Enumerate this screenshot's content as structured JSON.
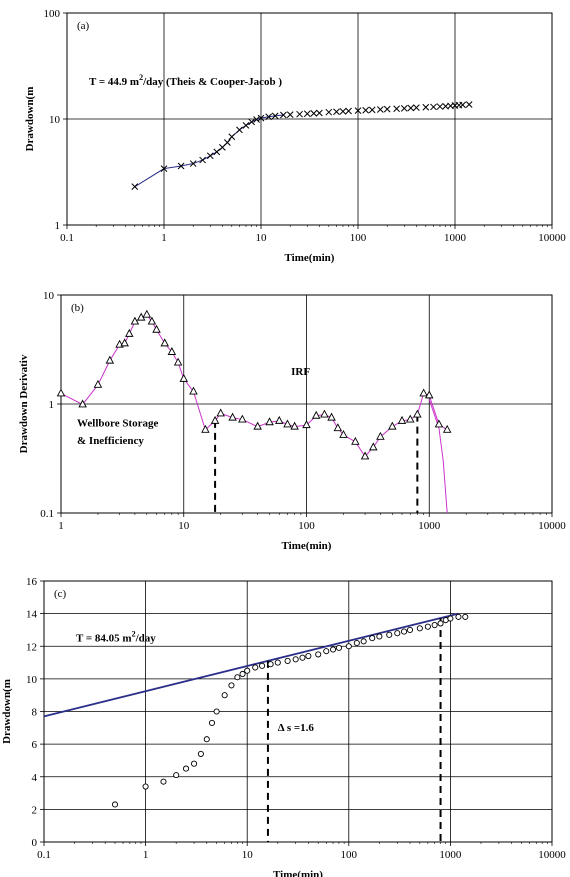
{
  "chart_data": [
    {
      "type": "scatter",
      "panel_label": "(a)",
      "xlabel": "Time(min)",
      "ylabel": "Drawdown(m",
      "xscale": "log",
      "yscale": "log",
      "xlim": [
        0.1,
        10000
      ],
      "ylim": [
        1,
        100
      ],
      "x_ticks": [
        "0.1",
        "1",
        "10",
        "100",
        "1000",
        "10000"
      ],
      "y_ticks": [
        "1",
        "10",
        "100"
      ],
      "grid": true,
      "annotation": {
        "prefix": "T = 44.9 m",
        "sup": "2",
        "suffix": "/day  (Theis & Cooper-Jacob )"
      },
      "series": [
        {
          "marker": "x",
          "color": "#000000",
          "x": [
            0.5,
            1,
            1.5,
            2,
            2.5,
            3,
            3.5,
            4,
            4.5,
            5,
            6,
            7,
            8,
            9,
            10,
            12,
            14,
            17,
            20,
            25,
            30,
            35,
            40,
            50,
            60,
            70,
            80,
            100,
            120,
            140,
            170,
            200,
            250,
            300,
            350,
            400,
            500,
            600,
            700,
            800,
            900,
            1000,
            1100,
            1200,
            1400
          ],
          "y": [
            2.3,
            3.4,
            3.6,
            3.8,
            4.1,
            4.5,
            4.9,
            5.4,
            6.0,
            6.8,
            7.9,
            8.7,
            9.4,
            9.9,
            10.2,
            10.5,
            10.7,
            10.9,
            11.0,
            11.1,
            11.2,
            11.3,
            11.4,
            11.6,
            11.7,
            11.8,
            11.9,
            12.0,
            12.1,
            12.2,
            12.3,
            12.4,
            12.5,
            12.6,
            12.7,
            12.8,
            12.9,
            13.0,
            13.1,
            13.2,
            13.3,
            13.4,
            13.5,
            13.6,
            13.7
          ]
        },
        {
          "marker": "none",
          "color": "#2b2f8a",
          "x": [
            0.5,
            1,
            1.5,
            2,
            2.5,
            3,
            3.5,
            4,
            4.5,
            5,
            6,
            7,
            8,
            9,
            10,
            12,
            14,
            17
          ],
          "y": [
            2.3,
            3.4,
            3.6,
            3.8,
            4.1,
            4.5,
            4.9,
            5.4,
            6.0,
            6.8,
            7.9,
            8.7,
            9.4,
            9.9,
            10.2,
            10.5,
            10.7,
            10.9
          ]
        }
      ]
    },
    {
      "type": "line",
      "panel_label": "(b)",
      "xlabel": "Time(min)",
      "ylabel": "Drawdown Derivativ",
      "xscale": "log",
      "yscale": "log",
      "xlim": [
        1,
        10000
      ],
      "ylim": [
        0.1,
        10
      ],
      "x_ticks": [
        "1",
        "10",
        "100",
        "1000",
        "10000"
      ],
      "y_ticks": [
        "0.1",
        "1",
        "10"
      ],
      "grid": true,
      "annotations": [
        "IRF",
        "Wellbore Storage",
        "& Inefficiency"
      ],
      "vlines": [
        18,
        800
      ],
      "series": [
        {
          "marker": "triangle",
          "color": "#000000",
          "line_color": "#cc33cc",
          "x": [
            1,
            1.5,
            2,
            2.5,
            3,
            3.3,
            3.6,
            4,
            4.5,
            5,
            5.5,
            6,
            7,
            8,
            9,
            10,
            12,
            15,
            18,
            20,
            25,
            30,
            40,
            50,
            60,
            70,
            80,
            100,
            120,
            140,
            160,
            180,
            200,
            250,
            300,
            350,
            400,
            500,
            600,
            700,
            800,
            900,
            1000,
            1200,
            1400
          ],
          "y": [
            1.25,
            0.99,
            1.5,
            2.5,
            3.5,
            3.6,
            4.4,
            5.7,
            6.2,
            6.6,
            5.7,
            4.8,
            3.6,
            3.0,
            2.4,
            1.7,
            1.3,
            0.58,
            0.7,
            0.82,
            0.75,
            0.72,
            0.62,
            0.68,
            0.7,
            0.65,
            0.62,
            0.64,
            0.78,
            0.8,
            0.75,
            0.6,
            0.52,
            0.45,
            0.33,
            0.4,
            0.5,
            0.62,
            0.7,
            0.72,
            0.8,
            1.25,
            1.2,
            0.65,
            0.58
          ]
        }
      ],
      "tail": {
        "x": [
          1000,
          1200,
          1300,
          1400
        ],
        "y": [
          1.1,
          0.6,
          0.3,
          0.1
        ]
      }
    },
    {
      "type": "scatter",
      "panel_label": "(c)",
      "xlabel": "Time(min)",
      "ylabel": "Drawdown(m",
      "xscale": "log",
      "yscale": "linear",
      "xlim": [
        0.1,
        10000
      ],
      "ylim": [
        0,
        16
      ],
      "x_ticks": [
        "0.1",
        "1",
        "10",
        "100",
        "1000",
        "10000"
      ],
      "y_ticks": [
        "0",
        "2",
        "4",
        "6",
        "8",
        "10",
        "12",
        "14",
        "16"
      ],
      "grid": true,
      "annotations": {
        "T": {
          "prefix": "T = 84.05 m",
          "sup": "2",
          "suffix": "/day"
        },
        "ds": "Δ s =1.6"
      },
      "fit_line": {
        "x": [
          0.1,
          1200
        ],
        "y": [
          7.7,
          14.0
        ],
        "color": "#2b2f8a"
      },
      "vlines": [
        16,
        800
      ],
      "series": [
        {
          "marker": "circle",
          "color": "#000000",
          "x": [
            0.5,
            1,
            1.5,
            2,
            2.5,
            3,
            3.5,
            4,
            4.5,
            5,
            6,
            7,
            8,
            9,
            10,
            12,
            14,
            17,
            20,
            25,
            30,
            35,
            40,
            50,
            60,
            70,
            80,
            100,
            120,
            140,
            170,
            200,
            250,
            300,
            350,
            400,
            500,
            600,
            700,
            800,
            900,
            1000,
            1200,
            1400
          ],
          "y": [
            2.3,
            3.4,
            3.7,
            4.1,
            4.5,
            4.8,
            5.4,
            6.3,
            7.3,
            8.0,
            9.0,
            9.6,
            10.1,
            10.3,
            10.5,
            10.7,
            10.8,
            10.9,
            11.0,
            11.1,
            11.2,
            11.3,
            11.4,
            11.5,
            11.7,
            11.8,
            11.9,
            12.0,
            12.2,
            12.3,
            12.5,
            12.6,
            12.7,
            12.8,
            12.9,
            13.0,
            13.1,
            13.2,
            13.3,
            13.4,
            13.6,
            13.7,
            13.8,
            13.8
          ]
        }
      ]
    }
  ]
}
